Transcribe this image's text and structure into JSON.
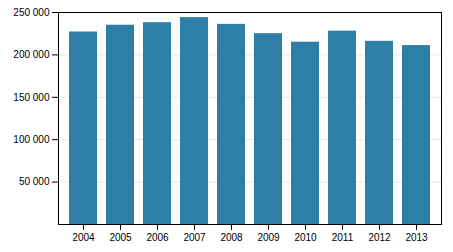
{
  "chart_data": {
    "type": "bar",
    "categories": [
      "2004",
      "2005",
      "2006",
      "2007",
      "2008",
      "2009",
      "2010",
      "2011",
      "2012",
      "2013"
    ],
    "values": [
      227000,
      235000,
      238000,
      244000,
      236000,
      225000,
      215000,
      228000,
      216000,
      211000
    ],
    "color": "#2e7fa8",
    "ylim": [
      0,
      250000
    ],
    "yticks": [
      {
        "value": 50000,
        "label": "50 000"
      },
      {
        "value": 100000,
        "label": "100 000"
      },
      {
        "value": 150000,
        "label": "150 000"
      },
      {
        "value": 200000,
        "label": "200 000"
      },
      {
        "value": 250000,
        "label": "250 000"
      }
    ],
    "grid": true
  }
}
